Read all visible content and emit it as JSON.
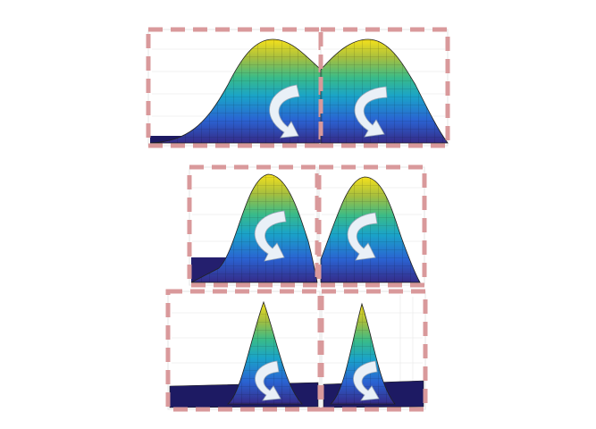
{
  "figure": {
    "rows": [
      {
        "id": "row-1",
        "panels": [
          {
            "id": "r1-left",
            "shape": "double-peak",
            "clipped": "right-half"
          },
          {
            "id": "r1-right",
            "shape": "double-peak",
            "clipped": "left-half"
          }
        ],
        "peak_width": "wide"
      },
      {
        "id": "row-2",
        "panels": [
          {
            "id": "r2-left",
            "shape": "single-peak"
          },
          {
            "id": "r2-right",
            "shape": "single-peak"
          }
        ],
        "peak_width": "medium"
      },
      {
        "id": "row-3",
        "panels": [
          {
            "id": "r3-left",
            "shape": "single-peak"
          },
          {
            "id": "r3-right",
            "shape": "single-peak"
          }
        ],
        "peak_width": "narrow"
      }
    ],
    "colormap": [
      "#352a87",
      "#2a63d2",
      "#1aa3c9",
      "#39bb89",
      "#a5be3f",
      "#f6e11b"
    ],
    "frame_color": "#d9999b",
    "arrow_color": "#e9f0f7",
    "arrow_icon": "curved-arrow-icon"
  }
}
